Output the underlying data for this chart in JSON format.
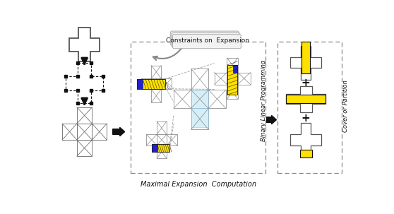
{
  "bg_color": "#ffffff",
  "fig_width": 5.58,
  "fig_height": 3.03,
  "dpi": 100,
  "yellow": "#FFE000",
  "blue": "#2222CC",
  "light_blue": "#C5E8F5",
  "gray": "#888888",
  "dark_gray": "#555555",
  "black": "#111111",
  "white": "#ffffff",
  "label_maximal": "Maximal Expansion  Computation",
  "label_constraints": "Constraints on  Expansion",
  "label_blp": "Binary Linear Programming",
  "label_cover": "Cover or Partition"
}
